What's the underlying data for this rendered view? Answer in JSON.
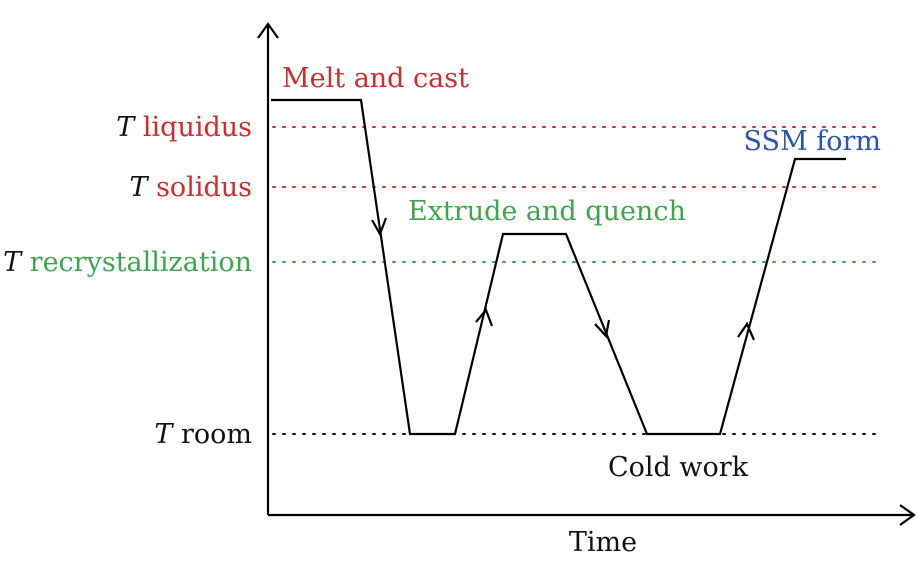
{
  "levels": {
    "liquidus": {
      "symbol": "T",
      "name": "liquidus",
      "color": "#d42a2a"
    },
    "solidus": {
      "symbol": "T",
      "name": "solidus",
      "color": "#d42a2a"
    },
    "recrystallization": {
      "symbol": "T",
      "name": "recrystallization",
      "color": "#3aa84a"
    },
    "room": {
      "symbol": "T",
      "name": "room",
      "color": "#111111"
    }
  },
  "annotations": {
    "melt_and_cast": {
      "text": "Melt and cast",
      "color": "#d42a2a"
    },
    "extrude_and_quench": {
      "text": "Extrude and quench",
      "color": "#3aa84a"
    },
    "ssm_form": {
      "text": "SSM form",
      "color": "#2a52b8"
    },
    "cold_work": {
      "text": "Cold work",
      "color": "#111111"
    }
  },
  "axis": {
    "x_label": "Time"
  }
}
